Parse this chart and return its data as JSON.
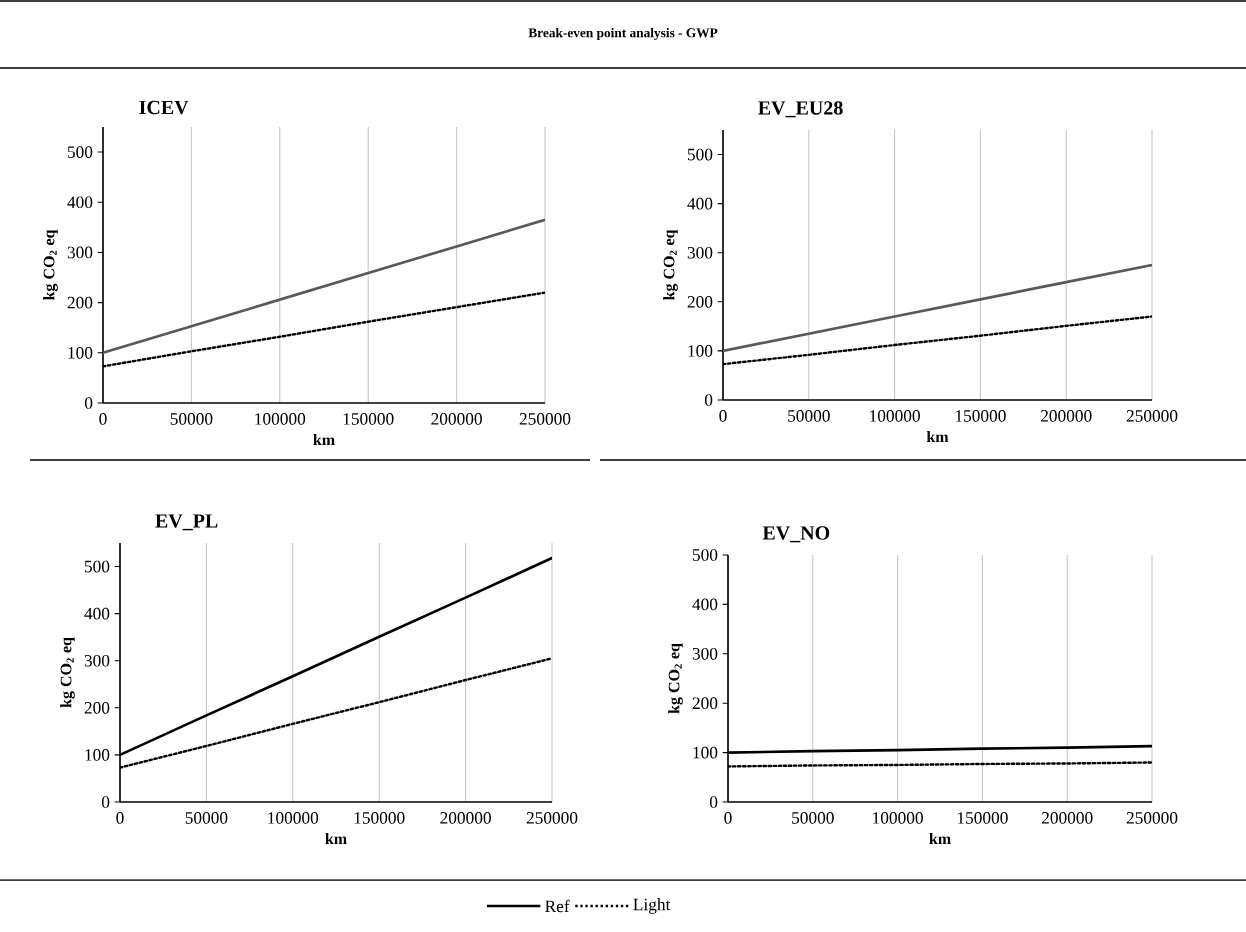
{
  "chart_data": [
    {
      "type": "line",
      "title": "ICEV",
      "annotations": [
        "Break-even point analysis - GWP"
      ],
      "xlabel": "km",
      "ylabel": "kg CO$_{2}$ eq",
      "x": [
        0,
        50000,
        100000,
        150000,
        200000,
        250000
      ],
      "xlim": [
        0,
        250000
      ],
      "xticks": [
        0,
        50000,
        100000,
        150000,
        200000,
        250000
      ],
      "ylim": [
        0,
        550
      ],
      "yticks": [
        0,
        100,
        200,
        300,
        400,
        500
      ],
      "grid": "x",
      "marker": "none",
      "series": [
        {
          "color": "#595959",
          "line_style": "solid",
          "values": [
            100,
            153,
            206,
            259,
            312,
            365
          ]
        },
        {
          "color": "#000000",
          "line_style": "dotted",
          "values": [
            73,
            103,
            132,
            162,
            191,
            220
          ]
        }
      ]
    },
    {
      "type": "line",
      "title": "EV_EU28",
      "xlabel": "km",
      "ylabel": "kg CO$_{2}$ eq",
      "x": [
        0,
        50000,
        100000,
        150000,
        200000,
        250000
      ],
      "xlim": [
        0,
        250000
      ],
      "xticks": [
        0,
        50000,
        100000,
        150000,
        200000,
        250000
      ],
      "ylim": [
        0,
        550
      ],
      "yticks": [
        0,
        100,
        200,
        300,
        400,
        500
      ],
      "grid": "x",
      "marker": "none",
      "series": [
        {
          "color": "#595959",
          "line_style": "solid",
          "values": [
            100,
            135,
            170,
            205,
            240,
            275
          ]
        },
        {
          "color": "#000000",
          "line_style": "dotted",
          "values": [
            73,
            92,
            112,
            131,
            151,
            170
          ]
        }
      ]
    },
    {
      "type": "line",
      "title": "EV_PL",
      "xlabel": "km",
      "ylabel": "kg CO$_{2}$ eq",
      "x": [
        0,
        50000,
        100000,
        150000,
        200000,
        250000
      ],
      "xlim": [
        0,
        250000
      ],
      "xticks": [
        0,
        50000,
        100000,
        150000,
        200000,
        250000
      ],
      "ylim": [
        0,
        550
      ],
      "yticks": [
        0,
        100,
        200,
        300,
        400,
        500
      ],
      "grid": "x",
      "marker": "none",
      "series": [
        {
          "color": "#000000",
          "line_style": "solid",
          "values": [
            100,
            184,
            267,
            351,
            434,
            518
          ]
        },
        {
          "color": "#000000",
          "line_style": "dotted",
          "values": [
            73,
            119,
            166,
            212,
            259,
            305
          ]
        }
      ]
    },
    {
      "type": "line",
      "title": "EV_NO",
      "xlabel": "km",
      "ylabel": "kg CO$_{2}$ eq",
      "x": [
        0,
        50000,
        100000,
        150000,
        200000,
        250000
      ],
      "xlim": [
        0,
        250000
      ],
      "xticks": [
        0,
        50000,
        100000,
        150000,
        200000,
        250000
      ],
      "ylim": [
        0,
        500
      ],
      "yticks": [
        0,
        100,
        200,
        300,
        400,
        500
      ],
      "grid": "x",
      "marker": "none",
      "legend": "bottom",
      "series": [
        {
          "name": "Ref",
          "color": "#000000",
          "line_style": "solid",
          "values": [
            100,
            103,
            105,
            108,
            110,
            113
          ]
        },
        {
          "name": "Light",
          "color": "#000000",
          "line_style": "dotted",
          "values": [
            72,
            74,
            75,
            77,
            78,
            80
          ]
        }
      ]
    }
  ]
}
